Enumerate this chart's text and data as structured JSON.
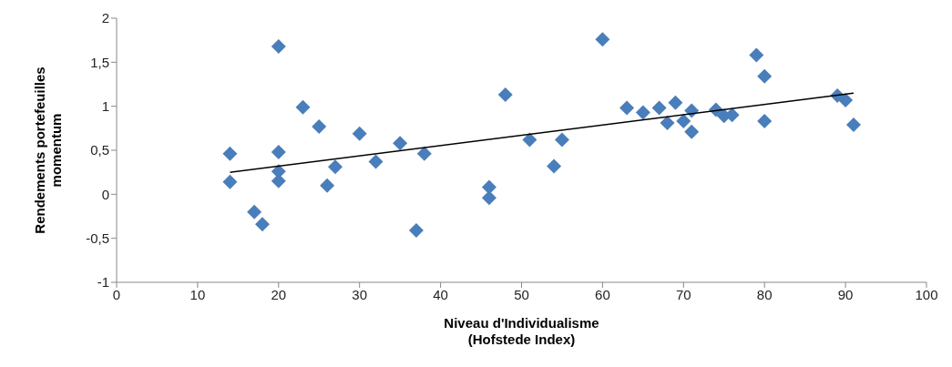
{
  "chart_data": {
    "type": "scatter",
    "xlabel": "Niveau d'Individualisme\n(Hofstede Index)",
    "ylabel": "Rendements portefeuilles\nmomentum",
    "grid": false,
    "legend": false,
    "xlim": [
      0,
      100
    ],
    "xticks": [
      0,
      10,
      20,
      30,
      40,
      50,
      60,
      70,
      80,
      90,
      100
    ],
    "ylim": [
      -1,
      2
    ],
    "yticks": [
      {
        "value": -1,
        "label": "-1"
      },
      {
        "value": -0.5,
        "label": "-0,5"
      },
      {
        "value": 0,
        "label": "0"
      },
      {
        "value": 0.5,
        "label": "0,5"
      },
      {
        "value": 1,
        "label": "1"
      },
      {
        "value": 1.5,
        "label": "1,5"
      },
      {
        "value": 2,
        "label": "2"
      }
    ],
    "series": [
      {
        "color": "#4a7ebb",
        "marker": "diamond",
        "x": [
          14,
          14,
          17,
          18,
          20,
          20,
          20,
          20,
          23,
          25,
          26,
          27,
          30,
          32,
          35,
          37,
          38,
          46,
          46,
          48,
          51,
          54,
          55,
          60,
          63,
          65,
          67,
          68,
          69,
          70,
          71,
          71,
          74,
          75,
          76,
          79,
          80,
          80,
          89,
          90,
          91
        ],
        "values": [
          0.46,
          0.14,
          -0.2,
          -0.34,
          1.68,
          0.48,
          0.26,
          0.15,
          0.99,
          0.77,
          0.1,
          0.31,
          0.69,
          0.37,
          0.58,
          -0.41,
          0.46,
          0.08,
          -0.04,
          1.13,
          0.62,
          0.32,
          0.62,
          1.76,
          0.98,
          0.93,
          0.98,
          0.81,
          1.04,
          0.83,
          0.95,
          0.71,
          0.96,
          0.89,
          0.9,
          1.58,
          1.34,
          0.83,
          1.12,
          1.07,
          0.79
        ]
      },
      {
        "type": "line",
        "marker": "none",
        "color": "#000000",
        "x": [
          14,
          91
        ],
        "values": [
          0.25,
          1.15
        ]
      }
    ]
  }
}
